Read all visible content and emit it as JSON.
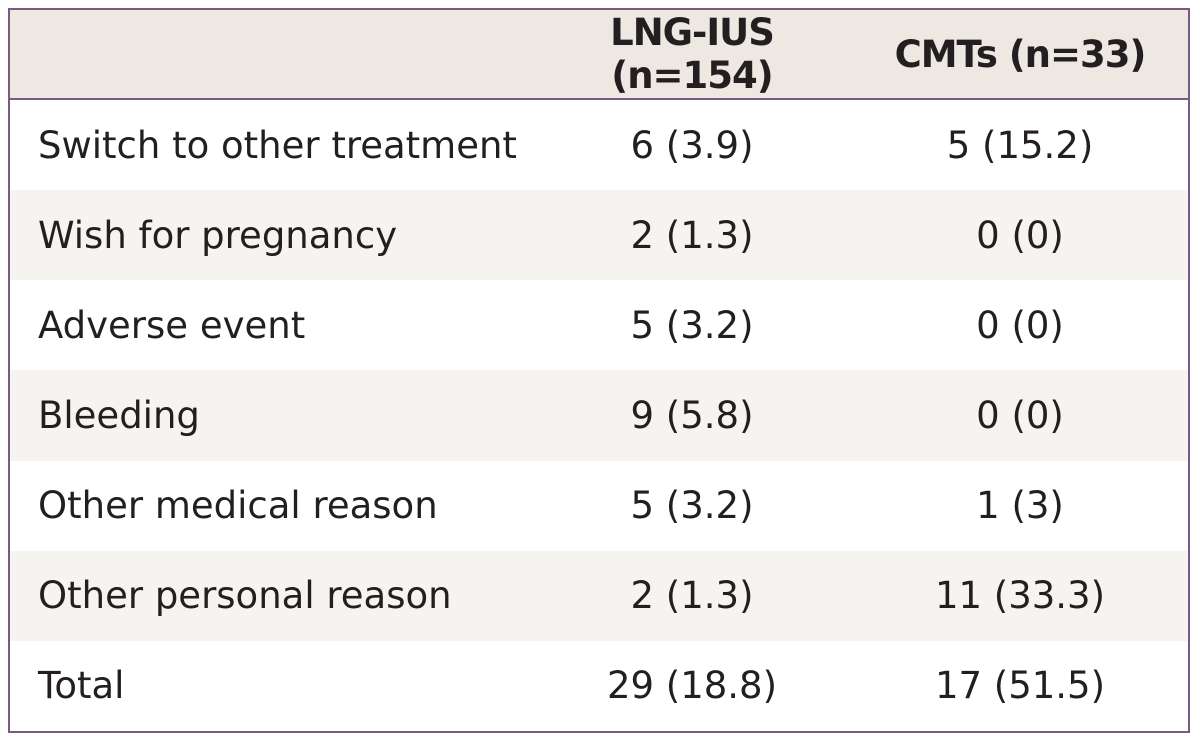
{
  "header": {
    "columns": [
      "LNG-IUS (n=154)",
      "CMTs (n=33)"
    ]
  },
  "table": {
    "rows": [
      [
        "Switch to other treatment",
        "6 (3.9)",
        "5 (15.2)"
      ],
      [
        "Wish for pregnancy",
        "2 (1.3)",
        "0 (0)"
      ],
      [
        "Adverse event",
        "5 (3.2)",
        "0 (0)"
      ],
      [
        "Bleeding",
        "9 (5.8)",
        "0 (0)"
      ],
      [
        "Other medical reason",
        "5 (3.2)",
        "1 (3)"
      ],
      [
        "Other personal reason",
        "2 (1.3)",
        "11 (33.3)"
      ],
      [
        "Total",
        "29 (18.8)",
        "17 (51.5)"
      ]
    ]
  }
}
